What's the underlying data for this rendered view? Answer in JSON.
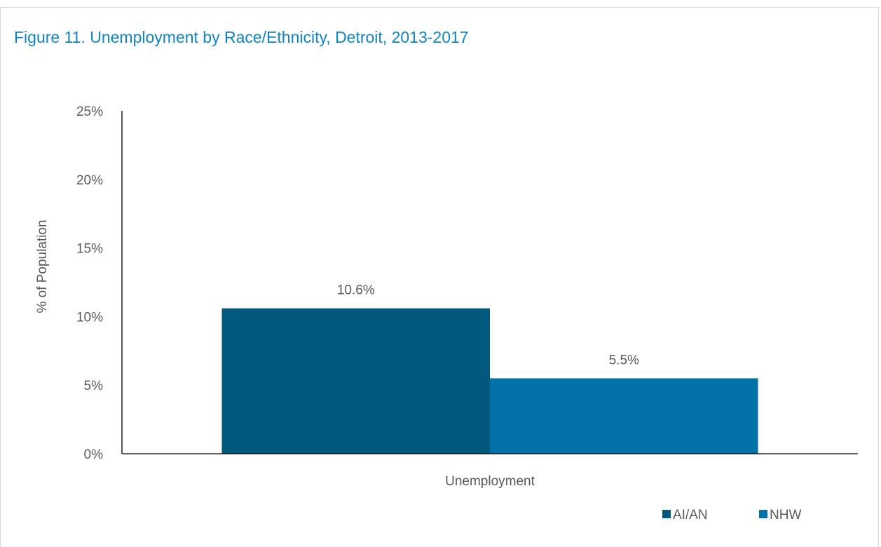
{
  "title": "Figure 11. Unemployment by Race/Ethnicity, Detroit, 2013-2017",
  "colors": {
    "title": "#0f86c2",
    "axis": "#000000",
    "text": "#595959"
  },
  "chart_data": {
    "type": "bar",
    "categories": [
      "Unemployment"
    ],
    "series": [
      {
        "name": "AI/AN",
        "values": [
          10.6
        ],
        "color": "#03587d",
        "label": "10.6%"
      },
      {
        "name": "NHW",
        "values": [
          5.5
        ],
        "color": "#0272a8",
        "label": "5.5%"
      }
    ],
    "ylabel": "% of Population",
    "xlabel": "",
    "ylim": [
      0,
      25
    ],
    "yticks": [
      "0%",
      "5%",
      "10%",
      "15%",
      "20%",
      "25%"
    ],
    "ytick_values": [
      0,
      5,
      10,
      15,
      20,
      25
    ],
    "grid": false,
    "legend_position": "bottom-right"
  }
}
